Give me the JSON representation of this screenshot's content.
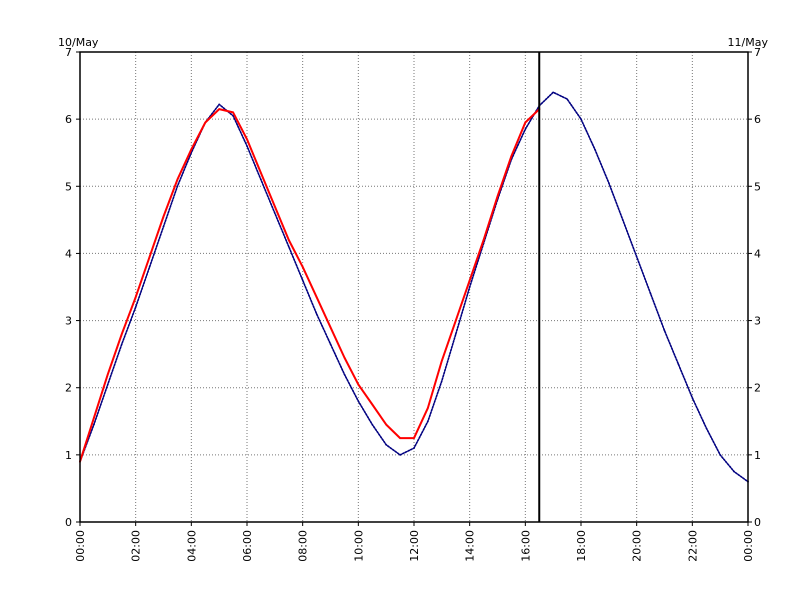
{
  "chart_data": {
    "type": "line",
    "x_unit": "hours",
    "x_range": [
      0,
      24
    ],
    "y_range": [
      0,
      7
    ],
    "y_ticks": [
      0,
      1,
      2,
      3,
      4,
      5,
      6,
      7
    ],
    "x_tick_values": [
      0,
      2,
      4,
      6,
      8,
      10,
      12,
      14,
      16,
      18,
      20,
      22,
      24
    ],
    "x_tick_labels": [
      "00:00",
      "02:00",
      "04:00",
      "06:00",
      "08:00",
      "10:00",
      "12:00",
      "14:00",
      "16:00",
      "18:00",
      "20:00",
      "22:00",
      "00:00"
    ],
    "date_left": "10/May",
    "date_right": "11/May",
    "grid": true,
    "current_time_marker": 16.5,
    "series": [
      {
        "color": "#000080",
        "style": "dotted",
        "points": [
          [
            0,
            0.9
          ],
          [
            0.5,
            1.45
          ],
          [
            1,
            2.05
          ],
          [
            1.5,
            2.65
          ],
          [
            2,
            3.2
          ],
          [
            2.5,
            3.8
          ],
          [
            3,
            4.4
          ],
          [
            3.5,
            5.0
          ],
          [
            4,
            5.5
          ],
          [
            4.5,
            5.95
          ],
          [
            5,
            6.22
          ],
          [
            5.5,
            6.05
          ],
          [
            6,
            5.6
          ],
          [
            6.5,
            5.1
          ],
          [
            7,
            4.6
          ],
          [
            7.5,
            4.1
          ],
          [
            8,
            3.6
          ],
          [
            8.5,
            3.1
          ],
          [
            9,
            2.65
          ],
          [
            9.5,
            2.2
          ],
          [
            10,
            1.8
          ],
          [
            10.5,
            1.45
          ],
          [
            11,
            1.15
          ],
          [
            11.5,
            1.0
          ],
          [
            12,
            1.1
          ],
          [
            12.5,
            1.5
          ],
          [
            13,
            2.1
          ],
          [
            13.5,
            2.8
          ],
          [
            14,
            3.5
          ],
          [
            14.5,
            4.15
          ],
          [
            15,
            4.8
          ],
          [
            15.5,
            5.4
          ],
          [
            16,
            5.85
          ],
          [
            16.5,
            6.2
          ],
          [
            17,
            6.4
          ],
          [
            17.5,
            6.3
          ],
          [
            18,
            6.0
          ],
          [
            18.5,
            5.55
          ],
          [
            19,
            5.05
          ],
          [
            19.5,
            4.5
          ],
          [
            20,
            3.95
          ],
          [
            20.5,
            3.4
          ],
          [
            21,
            2.85
          ],
          [
            21.5,
            2.35
          ],
          [
            22,
            1.85
          ],
          [
            22.5,
            1.4
          ],
          [
            23,
            1.0
          ],
          [
            23.5,
            0.75
          ],
          [
            24,
            0.6
          ]
        ]
      },
      {
        "color": "#ff0000",
        "style": "solid",
        "points": [
          [
            0,
            0.9
          ],
          [
            0.5,
            1.55
          ],
          [
            1,
            2.2
          ],
          [
            1.5,
            2.8
          ],
          [
            2,
            3.35
          ],
          [
            2.5,
            3.95
          ],
          [
            3,
            4.55
          ],
          [
            3.5,
            5.1
          ],
          [
            4,
            5.55
          ],
          [
            4.5,
            5.95
          ],
          [
            5,
            6.15
          ],
          [
            5.5,
            6.1
          ],
          [
            6,
            5.7
          ],
          [
            6.5,
            5.2
          ],
          [
            7,
            4.7
          ],
          [
            7.5,
            4.2
          ],
          [
            8,
            3.8
          ],
          [
            8.5,
            3.35
          ],
          [
            9,
            2.9
          ],
          [
            9.5,
            2.45
          ],
          [
            10,
            2.05
          ],
          [
            10.5,
            1.75
          ],
          [
            11,
            1.45
          ],
          [
            11.5,
            1.25
          ],
          [
            12,
            1.25
          ],
          [
            12.5,
            1.7
          ],
          [
            13,
            2.4
          ],
          [
            13.5,
            3.0
          ],
          [
            14,
            3.6
          ],
          [
            14.5,
            4.2
          ],
          [
            15,
            4.85
          ],
          [
            15.5,
            5.45
          ],
          [
            16,
            5.95
          ],
          [
            16.5,
            6.15
          ]
        ]
      }
    ]
  }
}
